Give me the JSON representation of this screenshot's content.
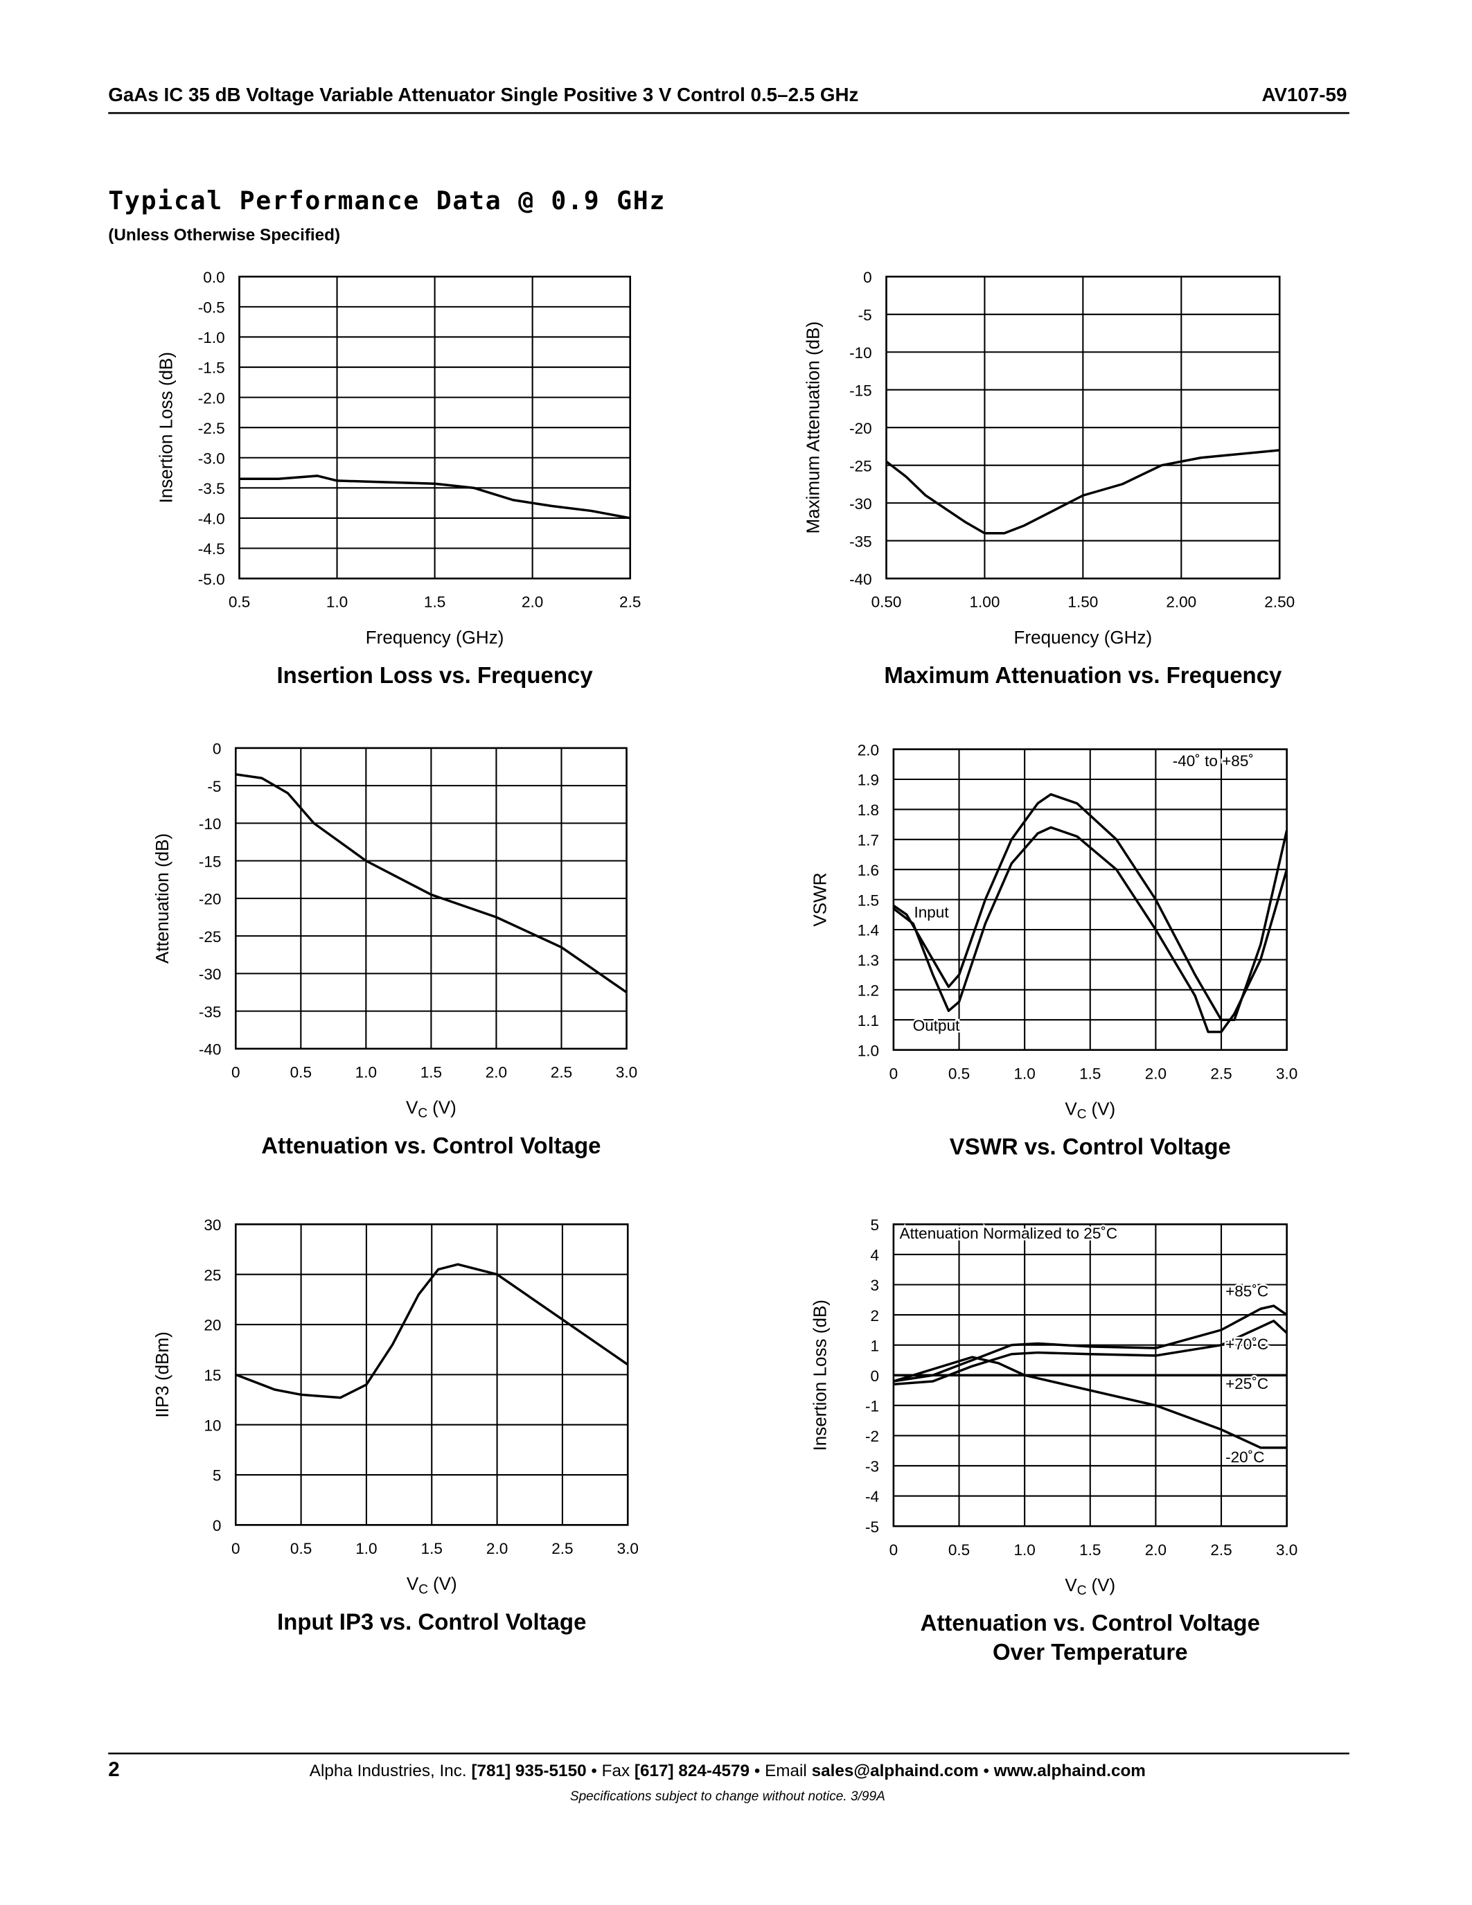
{
  "header": {
    "title": "GaAs IC 35 dB Voltage Variable Attenuator Single Positive 3 V Control 0.5–2.5 GHz",
    "part": "AV107-59"
  },
  "section": {
    "title": "Typical Performance Data @ 0.9 GHz",
    "subtitle": "(Unless Otherwise Specified)"
  },
  "chart_data": [
    {
      "type": "line",
      "title": [
        "Insertion Loss vs. Frequency"
      ],
      "xlabel": "Frequency (GHz)",
      "ylabel": "Insertion Loss (dB)",
      "xlim": [
        0.5,
        2.5
      ],
      "xticks": [
        0.5,
        {
          "value": 1,
          "label": "1.0"
        },
        1.5,
        {
          "value": 2,
          "label": "2.0"
        },
        2.5
      ],
      "ylim": [
        -5,
        0
      ],
      "yticks": [
        {
          "value": 0,
          "label": "0.0"
        },
        -0.5,
        {
          "value": -1,
          "label": "-1.0"
        },
        -1.5,
        {
          "value": -2,
          "label": "-2.0"
        },
        -2.5,
        {
          "value": -3,
          "label": "-3.0"
        },
        -3.5,
        {
          "value": -4,
          "label": "-4.0"
        },
        -4.5,
        {
          "value": -5,
          "label": "-5.0"
        }
      ],
      "grid": true,
      "series": [
        {
          "color": "#000000",
          "x": [
            0.5,
            0.7,
            0.9,
            1.0,
            1.2,
            1.5,
            1.7,
            1.9,
            2.1,
            2.3,
            2.5
          ],
          "values": [
            -3.35,
            -3.35,
            -3.3,
            -3.38,
            -3.4,
            -3.43,
            -3.5,
            -3.7,
            -3.8,
            -3.88,
            -4.0
          ]
        }
      ]
    },
    {
      "type": "line",
      "title": [
        "Maximum Attenuation vs. Frequency"
      ],
      "xlabel": "Frequency (GHz)",
      "ylabel": "Maximum Attenuation (dB)",
      "xlim": [
        0.5,
        2.5
      ],
      "xticks": [
        {
          "value": 0.5,
          "label": "0.50"
        },
        {
          "value": 1,
          "label": "1.00"
        },
        {
          "value": 1.5,
          "label": "1.50"
        },
        {
          "value": 2,
          "label": "2.00"
        },
        {
          "value": 2.5,
          "label": "2.50"
        }
      ],
      "ylim": [
        -40,
        0
      ],
      "yticks": [
        0,
        -5,
        -10,
        -15,
        -20,
        -25,
        -30,
        -35,
        -40
      ],
      "grid": true,
      "series": [
        {
          "color": "#000000",
          "x": [
            0.5,
            0.6,
            0.7,
            0.9,
            1.0,
            1.1,
            1.2,
            1.35,
            1.5,
            1.7,
            1.9,
            2.1,
            2.3,
            2.5
          ],
          "values": [
            -24.5,
            -26.5,
            -29,
            -32.5,
            -34,
            -34,
            -33,
            -31,
            -29,
            -27.5,
            -25,
            -24,
            -23.5,
            -23
          ]
        }
      ]
    },
    {
      "type": "line",
      "title": [
        "Attenuation vs. Control Voltage"
      ],
      "xlabel": "V",
      "xlabel_sub": "C",
      "xlabel_unit": "(V)",
      "ylabel": "Attenuation (dB)",
      "xlim": [
        0,
        3
      ],
      "xticks": [
        0,
        0.5,
        {
          "value": 1,
          "label": "1.0"
        },
        1.5,
        {
          "value": 2,
          "label": "2.0"
        },
        2.5,
        {
          "value": 3,
          "label": "3.0"
        }
      ],
      "ylim": [
        -40,
        0
      ],
      "yticks": [
        0,
        -5,
        -10,
        -15,
        -20,
        -25,
        -30,
        -35,
        -40
      ],
      "grid": true,
      "series": [
        {
          "color": "#000000",
          "x": [
            0,
            0.2,
            0.4,
            0.6,
            1.0,
            1.5,
            2.0,
            2.5,
            3.0
          ],
          "values": [
            -3.5,
            -4,
            -6,
            -10,
            -15,
            -19.5,
            -22.5,
            -26.5,
            -32.5
          ]
        }
      ]
    },
    {
      "type": "line",
      "title": [
        "VSWR vs. Control Voltage"
      ],
      "xlabel": "V",
      "xlabel_sub": "C",
      "xlabel_unit": "(V)",
      "ylabel": "VSWR",
      "xlim": [
        0,
        3
      ],
      "xticks": [
        0,
        0.5,
        {
          "value": 1,
          "label": "1.0"
        },
        1.5,
        {
          "value": 2,
          "label": "2.0"
        },
        2.5,
        {
          "value": 3,
          "label": "3.0"
        }
      ],
      "ylim": [
        1,
        2
      ],
      "yticks": [
        {
          "value": 2,
          "label": "2.0"
        },
        1.9,
        1.8,
        1.7,
        1.6,
        1.5,
        1.4,
        1.3,
        1.2,
        1.1,
        {
          "value": 1,
          "label": "1.0"
        }
      ],
      "grid": true,
      "annotations": [
        "-40˚ to +85˚"
      ],
      "series": [
        {
          "name": "Input",
          "color": "#000000",
          "x": [
            0,
            0.1,
            0.3,
            0.42,
            0.5,
            0.7,
            0.9,
            1.1,
            1.2,
            1.4,
            1.7,
            2.0,
            2.3,
            2.5,
            2.6,
            2.8,
            3.0
          ],
          "values": [
            1.48,
            1.45,
            1.3,
            1.21,
            1.25,
            1.5,
            1.7,
            1.82,
            1.85,
            1.82,
            1.7,
            1.5,
            1.25,
            1.1,
            1.1,
            1.35,
            1.73
          ]
        },
        {
          "name": "Output",
          "color": "#000000",
          "x": [
            0,
            0.15,
            0.3,
            0.42,
            0.5,
            0.7,
            0.9,
            1.1,
            1.2,
            1.4,
            1.7,
            2.0,
            2.3,
            2.4,
            2.5,
            2.6,
            2.8,
            3.0
          ],
          "values": [
            1.47,
            1.42,
            1.25,
            1.13,
            1.16,
            1.42,
            1.62,
            1.72,
            1.74,
            1.71,
            1.6,
            1.4,
            1.18,
            1.06,
            1.06,
            1.12,
            1.3,
            1.6
          ]
        }
      ]
    },
    {
      "type": "line",
      "title": [
        "Input IP3 vs. Control Voltage"
      ],
      "xlabel": "V",
      "xlabel_sub": "C",
      "xlabel_unit": "(V)",
      "ylabel": "IIP3 (dBm)",
      "xlim": [
        0,
        3
      ],
      "xticks": [
        0,
        0.5,
        {
          "value": 1,
          "label": "1.0"
        },
        1.5,
        {
          "value": 2,
          "label": "2.0"
        },
        2.5,
        {
          "value": 3,
          "label": "3.0"
        }
      ],
      "ylim": [
        0,
        30
      ],
      "yticks": [
        30,
        25,
        20,
        15,
        10,
        5,
        0
      ],
      "grid": true,
      "series": [
        {
          "color": "#000000",
          "x": [
            0,
            0.3,
            0.5,
            0.8,
            1.0,
            1.2,
            1.4,
            1.55,
            1.7,
            2.0,
            2.5,
            3.0
          ],
          "values": [
            15,
            13.5,
            13,
            12.7,
            14,
            18,
            23,
            25.5,
            26,
            25,
            20.5,
            16
          ]
        }
      ]
    },
    {
      "type": "line",
      "title": [
        "Attenuation vs. Control Voltage",
        "Over Temperature"
      ],
      "xlabel": "V",
      "xlabel_sub": "C",
      "xlabel_unit": "(V)",
      "ylabel": "Insertion Loss (dB)",
      "xlim": [
        0,
        3
      ],
      "xticks": [
        0,
        0.5,
        {
          "value": 1,
          "label": "1.0"
        },
        1.5,
        {
          "value": 2,
          "label": "2.0"
        },
        2.5,
        {
          "value": 3,
          "label": "3.0"
        }
      ],
      "ylim": [
        -5,
        5
      ],
      "yticks": [
        5,
        4,
        3,
        2,
        1,
        0,
        -1,
        -2,
        -3,
        -4,
        -5
      ],
      "grid": true,
      "annotations": [
        "Attenuation Normalized to 25˚C"
      ],
      "series": [
        {
          "name": "+85˚C",
          "color": "#000000",
          "x": [
            0,
            0.3,
            0.6,
            0.9,
            1.1,
            1.5,
            2.0,
            2.5,
            2.8,
            2.9,
            3.0
          ],
          "values": [
            -0.2,
            0,
            0.5,
            1.0,
            1.05,
            0.95,
            0.9,
            1.5,
            2.2,
            2.3,
            2.0
          ]
        },
        {
          "name": "+70˚C",
          "color": "#000000",
          "x": [
            0,
            0.3,
            0.6,
            0.9,
            1.1,
            1.5,
            2.0,
            2.5,
            2.8,
            2.9,
            3.0
          ],
          "values": [
            -0.3,
            -0.2,
            0.3,
            0.7,
            0.75,
            0.7,
            0.65,
            1.0,
            1.6,
            1.8,
            1.4
          ]
        },
        {
          "name": "+25˚C",
          "color": "#000000",
          "x": [
            0,
            3
          ],
          "values": [
            0,
            0
          ]
        },
        {
          "name": "-20˚C",
          "color": "#000000",
          "x": [
            0,
            0.3,
            0.6,
            0.8,
            1.0,
            1.5,
            2.0,
            2.5,
            2.8,
            3.0
          ],
          "values": [
            -0.2,
            0.2,
            0.6,
            0.4,
            0,
            -0.5,
            -1.0,
            -1.8,
            -2.4,
            -2.4
          ]
        }
      ]
    }
  ],
  "footer": {
    "page": "2",
    "parts": [
      "Alpha Industries, Inc.",
      "[781] 935-5150",
      "• Fax",
      "[617] 824-4579",
      "• Email",
      "sales@alphaind.com",
      "•",
      "www.alphaind.com"
    ],
    "note": "Specifications subject to change without notice.  3/99A"
  }
}
